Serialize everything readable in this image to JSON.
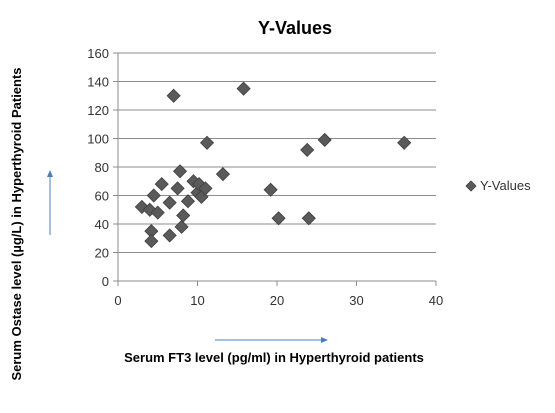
{
  "chart_data": {
    "type": "scatter",
    "title": "Y-Values",
    "xlabel": "Serum FT3 level (pg/ml) in Hyperthyroid patients",
    "ylabel": "Serum Ostase level (µg/L) in Hyperthyroid Patients",
    "xlim": [
      0,
      40
    ],
    "ylim": [
      0,
      160
    ],
    "xticks": [
      "0",
      "10",
      "20",
      "30",
      "40"
    ],
    "yticks": [
      "0",
      "20",
      "40",
      "60",
      "80",
      "100",
      "120",
      "140",
      "160"
    ],
    "grid": "horizontal",
    "legend_position": "right",
    "marker_color": "#5a5a5a",
    "arrow_color": "#4a7ebb",
    "series": [
      {
        "name": "Y-Values",
        "points": [
          {
            "x": 3.0,
            "y": 52
          },
          {
            "x": 4.0,
            "y": 50
          },
          {
            "x": 4.5,
            "y": 60
          },
          {
            "x": 4.2,
            "y": 35
          },
          {
            "x": 4.2,
            "y": 28
          },
          {
            "x": 5.0,
            "y": 48
          },
          {
            "x": 5.5,
            "y": 68
          },
          {
            "x": 6.5,
            "y": 55
          },
          {
            "x": 6.5,
            "y": 32
          },
          {
            "x": 7.0,
            "y": 130
          },
          {
            "x": 7.5,
            "y": 65
          },
          {
            "x": 7.8,
            "y": 77
          },
          {
            "x": 8.0,
            "y": 38
          },
          {
            "x": 8.2,
            "y": 46
          },
          {
            "x": 8.8,
            "y": 56
          },
          {
            "x": 9.5,
            "y": 70
          },
          {
            "x": 10.0,
            "y": 62
          },
          {
            "x": 10.2,
            "y": 68
          },
          {
            "x": 10.5,
            "y": 59
          },
          {
            "x": 11.0,
            "y": 65
          },
          {
            "x": 11.2,
            "y": 97
          },
          {
            "x": 13.2,
            "y": 75
          },
          {
            "x": 15.8,
            "y": 135
          },
          {
            "x": 19.2,
            "y": 64
          },
          {
            "x": 20.2,
            "y": 44
          },
          {
            "x": 23.8,
            "y": 92
          },
          {
            "x": 24.0,
            "y": 44
          },
          {
            "x": 26.0,
            "y": 99
          },
          {
            "x": 36.0,
            "y": 97
          }
        ]
      }
    ]
  }
}
